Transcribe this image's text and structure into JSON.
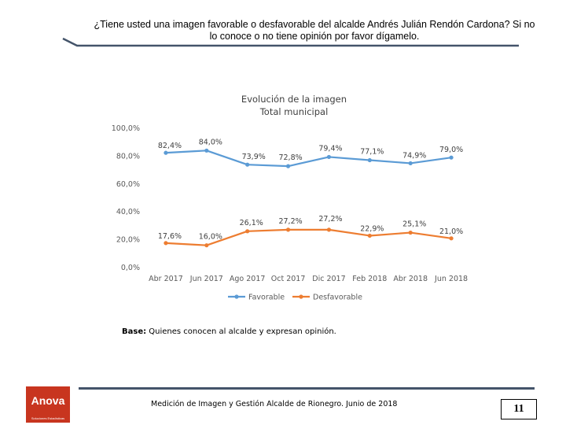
{
  "question": {
    "line1": "¿Tiene usted una imagen favorable o desfavorable del alcalde Andrés Julián Rendón Cardona? Si no",
    "line2": "lo conoce o no tiene opinión por favor dígamelo."
  },
  "chart_data": {
    "type": "line",
    "title": "Evolución de la imagen",
    "subtitle": "Total municipal",
    "categories": [
      "Abr 2017",
      "Jun 2017",
      "Ago 2017",
      "Oct 2017",
      "Dic 2017",
      "Feb 2018",
      "Abr 2018",
      "Jun 2018"
    ],
    "y_ticks": [
      "100,0%",
      "80,0%",
      "60,0%",
      "40,0%",
      "20,0%",
      "0,0%"
    ],
    "ylim": [
      0,
      100
    ],
    "series": [
      {
        "name": "Favorable",
        "color": "#5b9bd5",
        "values": [
          82.4,
          84.0,
          73.9,
          72.8,
          79.4,
          77.1,
          74.9,
          79.0
        ],
        "labels": [
          "82,4%",
          "84,0%",
          "73,9%",
          "72,8%",
          "79,4%",
          "77,1%",
          "74,9%",
          "79,0%"
        ]
      },
      {
        "name": "Desfavorable",
        "color": "#ed7d31",
        "values": [
          17.6,
          16.0,
          26.1,
          27.2,
          27.2,
          22.9,
          25.1,
          21.0
        ],
        "labels": [
          "17,6%",
          "16,0%",
          "26,1%",
          "27,2%",
          "27,2%",
          "22,9%",
          "25,1%",
          "21,0%"
        ]
      }
    ],
    "legend_position": "bottom"
  },
  "base_note": {
    "label": "Base:",
    "text": " Quienes conocen al alcalde y expresan opinión."
  },
  "footer": {
    "text": "Medición de Imagen y Gestión Alcalde de Rionegro. Junio de 2018",
    "page_number": "11"
  },
  "logo": {
    "brand": "Anova",
    "tagline": "Soluciones Estadísticas"
  },
  "colors": {
    "rule": "#44546a",
    "logo_bg": "#c8351f"
  }
}
